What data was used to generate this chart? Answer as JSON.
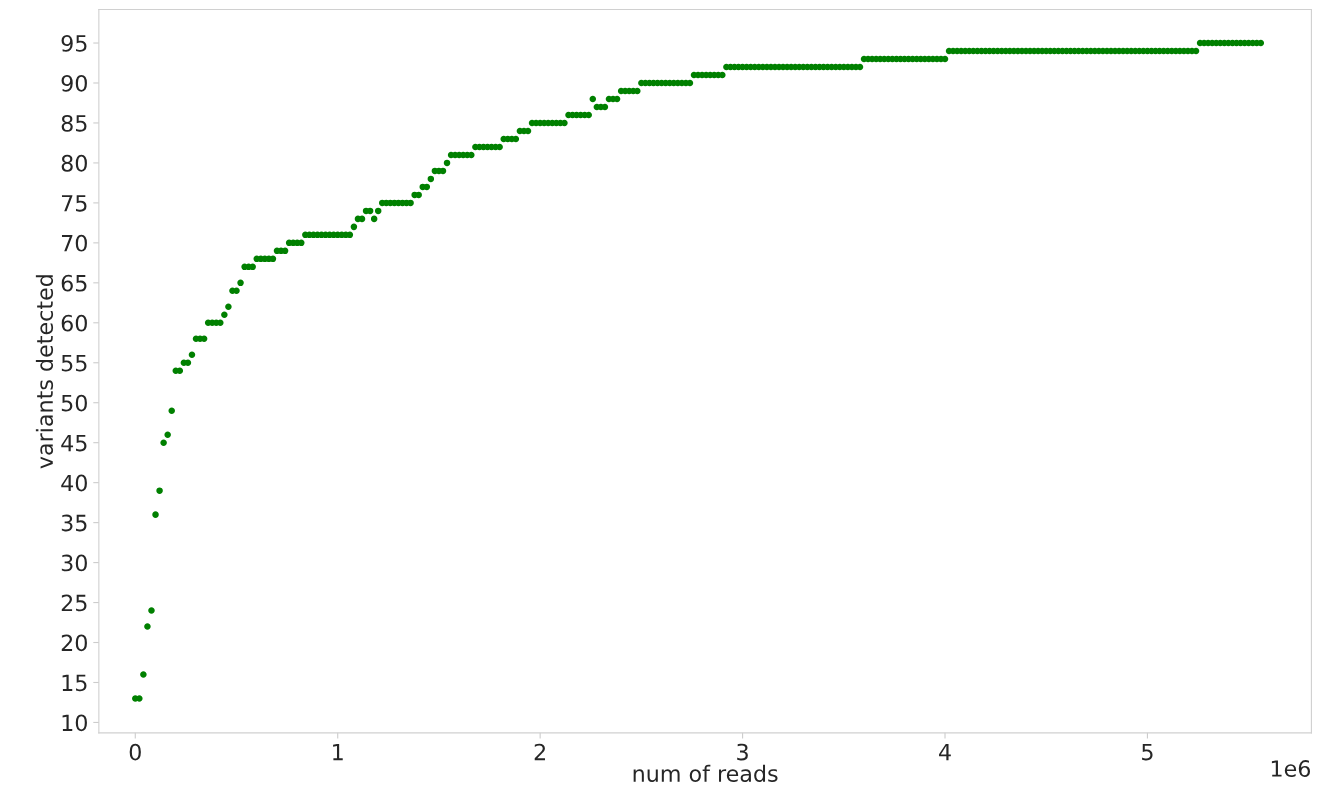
{
  "chart_data": {
    "type": "scatter",
    "xlabel": "num of reads",
    "ylabel": "variants detected",
    "annotations": [
      "1e6"
    ],
    "marker": "circle",
    "grid": false,
    "legend": false,
    "xlim": [
      -0.18,
      5.81
    ],
    "xticks": [
      0,
      1,
      2,
      3,
      4,
      5
    ],
    "ylim": [
      8.7,
      99.2
    ],
    "yticks": [
      10,
      15,
      20,
      25,
      30,
      35,
      40,
      45,
      50,
      55,
      60,
      65,
      70,
      75,
      80,
      85,
      90,
      95
    ],
    "series": [
      {
        "color": "#008000",
        "x": [
          0,
          0.02,
          0.04,
          0.06,
          0.08,
          0.1,
          0.12,
          0.14,
          0.16,
          0.18,
          0.2,
          0.22,
          0.24,
          0.26,
          0.28,
          0.3,
          0.32,
          0.34,
          0.36,
          0.38,
          0.4,
          0.42,
          0.44,
          0.46,
          0.48,
          0.5,
          0.52,
          0.54,
          0.56,
          0.58,
          0.6,
          0.62,
          0.64,
          0.66,
          0.68,
          0.7,
          0.72,
          0.74,
          0.76,
          0.78,
          0.8,
          0.82,
          0.84,
          0.86,
          0.88,
          0.9,
          0.92,
          0.94,
          0.96,
          0.98,
          1.0,
          1.02,
          1.04,
          1.06,
          1.08,
          1.1,
          1.12,
          1.14,
          1.16,
          1.18,
          1.2,
          1.22,
          1.24,
          1.26,
          1.28,
          1.3,
          1.32,
          1.34,
          1.36,
          1.38,
          1.4,
          1.42,
          1.44,
          1.46,
          1.48,
          1.5,
          1.52,
          1.54,
          1.56,
          1.58,
          1.6,
          1.62,
          1.64,
          1.66,
          1.68,
          1.7,
          1.72,
          1.74,
          1.76,
          1.78,
          1.8,
          1.82,
          1.84,
          1.86,
          1.88,
          1.9,
          1.92,
          1.94,
          1.96,
          1.98,
          2.0,
          2.02,
          2.04,
          2.06,
          2.08,
          2.1,
          2.12,
          2.14,
          2.16,
          2.18,
          2.2,
          2.22,
          2.24,
          2.26,
          2.28,
          2.3,
          2.32,
          2.34,
          2.36,
          2.38,
          2.4,
          2.42,
          2.44,
          2.46,
          2.48,
          2.5,
          2.52,
          2.54,
          2.56,
          2.58,
          2.6,
          2.62,
          2.64,
          2.66,
          2.68,
          2.7,
          2.72,
          2.74,
          2.76,
          2.78,
          2.8,
          2.82,
          2.84,
          2.86,
          2.88,
          2.9,
          2.92,
          2.94,
          2.96,
          2.98,
          3.0,
          3.02,
          3.04,
          3.06,
          3.08,
          3.1,
          3.12,
          3.14,
          3.16,
          3.18,
          3.2,
          3.22,
          3.24,
          3.26,
          3.28,
          3.3,
          3.32,
          3.34,
          3.36,
          3.38,
          3.4,
          3.42,
          3.44,
          3.46,
          3.48,
          3.5,
          3.52,
          3.54,
          3.56,
          3.58,
          3.6,
          3.62,
          3.64,
          3.66,
          3.68,
          3.7,
          3.72,
          3.74,
          3.76,
          3.78,
          3.8,
          3.82,
          3.84,
          3.86,
          3.88,
          3.9,
          3.92,
          3.94,
          3.96,
          3.98,
          4.0,
          4.02,
          4.04,
          4.06,
          4.08,
          4.1,
          4.12,
          4.14,
          4.16,
          4.18,
          4.2,
          4.22,
          4.24,
          4.26,
          4.28,
          4.3,
          4.32,
          4.34,
          4.36,
          4.38,
          4.4,
          4.42,
          4.44,
          4.46,
          4.48,
          4.5,
          4.52,
          4.54,
          4.56,
          4.58,
          4.6,
          4.62,
          4.64,
          4.66,
          4.68,
          4.7,
          4.72,
          4.74,
          4.76,
          4.78,
          4.8,
          4.82,
          4.84,
          4.86,
          4.88,
          4.9,
          4.92,
          4.94,
          4.96,
          4.98,
          5.0,
          5.02,
          5.04,
          5.06,
          5.08,
          5.1,
          5.12,
          5.14,
          5.16,
          5.18,
          5.2,
          5.22,
          5.24,
          5.26,
          5.28,
          5.3,
          5.32,
          5.34,
          5.36,
          5.38,
          5.4,
          5.42,
          5.44,
          5.46,
          5.48,
          5.5,
          5.52,
          5.54,
          5.56
        ],
        "values": [
          13,
          13,
          16,
          22,
          24,
          36,
          39,
          45,
          46,
          49,
          54,
          54,
          55,
          55,
          56,
          58,
          58,
          58,
          60,
          60,
          60,
          60,
          61,
          62,
          64,
          64,
          65,
          67,
          67,
          67,
          68,
          68,
          68,
          68,
          68,
          69,
          69,
          69,
          70,
          70,
          70,
          70,
          71,
          71,
          71,
          71,
          71,
          71,
          71,
          71,
          71,
          71,
          71,
          71,
          72,
          73,
          73,
          74,
          74,
          73,
          74,
          75,
          75,
          75,
          75,
          75,
          75,
          75,
          75,
          76,
          76,
          77,
          77,
          78,
          79,
          79,
          79,
          80,
          81,
          81,
          81,
          81,
          81,
          81,
          82,
          82,
          82,
          82,
          82,
          82,
          82,
          83,
          83,
          83,
          83,
          84,
          84,
          84,
          85,
          85,
          85,
          85,
          85,
          85,
          85,
          85,
          85,
          86,
          86,
          86,
          86,
          86,
          86,
          88,
          87,
          87,
          87,
          88,
          88,
          88,
          89,
          89,
          89,
          89,
          89,
          90,
          90,
          90,
          90,
          90,
          90,
          90,
          90,
          90,
          90,
          90,
          90,
          90,
          91,
          91,
          91,
          91,
          91,
          91,
          91,
          91,
          92,
          92,
          92,
          92,
          92,
          92,
          92,
          92,
          92,
          92,
          92,
          92,
          92,
          92,
          92,
          92,
          92,
          92,
          92,
          92,
          92,
          92,
          92,
          92,
          92,
          92,
          92,
          92,
          92,
          92,
          92,
          92,
          92,
          92,
          93,
          93,
          93,
          93,
          93,
          93,
          93,
          93,
          93,
          93,
          93,
          93,
          93,
          93,
          93,
          93,
          93,
          93,
          93,
          93,
          93,
          94,
          94,
          94,
          94,
          94,
          94,
          94,
          94,
          94,
          94,
          94,
          94,
          94,
          94,
          94,
          94,
          94,
          94,
          94,
          94,
          94,
          94,
          94,
          94,
          94,
          94,
          94,
          94,
          94,
          94,
          94,
          94,
          94,
          94,
          94,
          94,
          94,
          94,
          94,
          94,
          94,
          94,
          94,
          94,
          94,
          94,
          94,
          94,
          94,
          94,
          94,
          94,
          94,
          94,
          94,
          94,
          94,
          94,
          94,
          94,
          94,
          94,
          95,
          95,
          95,
          95,
          95,
          95,
          95,
          95,
          95,
          95,
          95,
          95,
          95,
          95,
          95,
          95
        ]
      }
    ]
  }
}
